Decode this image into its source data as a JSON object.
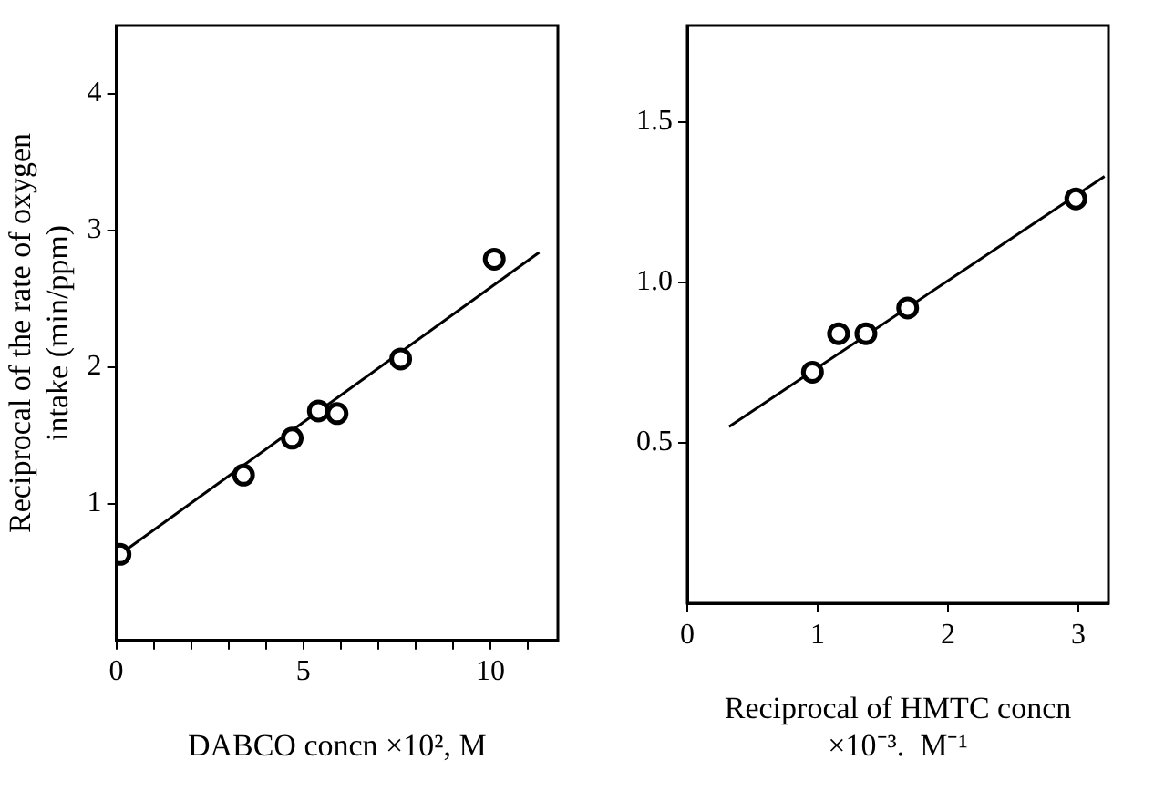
{
  "chart_data": [
    {
      "type": "scatter",
      "xlabel": "DABCO concn ×10², M",
      "ylabel": "Reciprocal of the rate of oxygen\nintake (min/ppm)",
      "xlim": [
        0,
        11.8
      ],
      "xticks": [
        0,
        {
          "value": 1,
          "label": null
        },
        {
          "value": 2,
          "label": null
        },
        {
          "value": 3,
          "label": null
        },
        {
          "value": 4,
          "label": null
        },
        5,
        {
          "value": 6,
          "label": null
        },
        {
          "value": 7,
          "label": null
        },
        {
          "value": 8,
          "label": null
        },
        {
          "value": 9,
          "label": null
        },
        10,
        {
          "value": 11,
          "label": null
        }
      ],
      "ylim": [
        0,
        4.5
      ],
      "yticks": [
        1,
        2,
        3,
        4
      ],
      "grid": false,
      "legend": false,
      "series": [
        {
          "marker": "circle",
          "color": "#000000",
          "x": [
            0.1,
            3.4,
            4.7,
            5.4,
            5.9,
            7.6,
            10.1
          ],
          "values": [
            0.63,
            1.21,
            1.48,
            1.68,
            1.66,
            2.06,
            2.79
          ]
        },
        {
          "type": "line",
          "marker": "none",
          "color": "#000000",
          "x": [
            0.25,
            11.3
          ],
          "values": [
            0.66,
            2.84
          ]
        }
      ]
    },
    {
      "type": "scatter",
      "xlabel": "Reciprocal of HMTC concn\n×10⁻³.  M⁻¹",
      "xlim": [
        0,
        3.23
      ],
      "xticks": [
        0,
        1,
        2,
        3
      ],
      "ylim": [
        0,
        1.8
      ],
      "yticks": [
        0.5,
        {
          "value": 1,
          "label": "1.0"
        },
        1.5
      ],
      "grid": false,
      "legend": false,
      "series": [
        {
          "marker": "circle",
          "color": "#000000",
          "x": [
            0.96,
            1.16,
            1.37,
            1.69,
            2.98
          ],
          "values": [
            0.72,
            0.84,
            0.84,
            0.92,
            1.26
          ]
        },
        {
          "type": "line",
          "marker": "none",
          "color": "#000000",
          "x": [
            0.32,
            3.2
          ],
          "values": [
            0.55,
            1.33
          ]
        }
      ]
    }
  ]
}
